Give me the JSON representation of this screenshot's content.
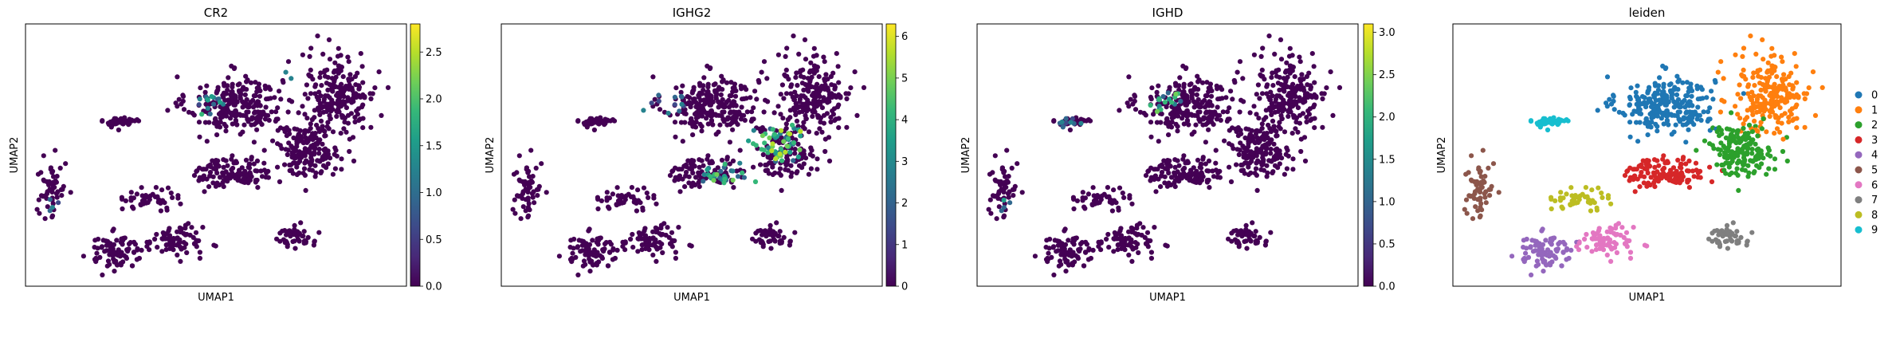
{
  "figure": {
    "colormap": [
      "#440154",
      "#482878",
      "#3e4989",
      "#31688e",
      "#26828e",
      "#1f9e89",
      "#35b779",
      "#6ece58",
      "#b5de2b",
      "#fde725"
    ],
    "categorical_palette": [
      "#1f77b4",
      "#ff7f0e",
      "#2ca02c",
      "#d62728",
      "#9467bd",
      "#8c564b",
      "#e377c2",
      "#7f7f7f",
      "#bcbd22",
      "#17becf"
    ]
  },
  "chart_data": [
    {
      "type": "scatter",
      "title": "CR2",
      "xlabel": "UMAP1",
      "ylabel": "UMAP2",
      "color_scale": "viridis",
      "colorbar": {
        "range": [
          0,
          2.8
        ],
        "ticks": [
          "0.0",
          "0.5",
          "1.0",
          "1.5",
          "2.0",
          "2.5"
        ]
      },
      "hotspots": [
        {
          "x": 0.47,
          "y": 0.7,
          "spread": 0.05,
          "count": 14,
          "max": 1.8
        },
        {
          "x": 0.06,
          "y": 0.3,
          "spread": 0.03,
          "count": 6,
          "max": 1.3
        },
        {
          "x": 0.7,
          "y": 0.82,
          "spread": 0.03,
          "count": 3,
          "max": 2.7
        }
      ]
    },
    {
      "type": "scatter",
      "title": "IGHG2",
      "xlabel": "UMAP1",
      "ylabel": "UMAP2",
      "color_scale": "viridis",
      "colorbar": {
        "range": [
          0,
          6.3
        ],
        "ticks": [
          "0",
          "1",
          "2",
          "3",
          "4",
          "5",
          "6"
        ]
      },
      "hotspots": [
        {
          "x": 0.72,
          "y": 0.55,
          "spread": 0.09,
          "count": 28,
          "max": 6.0
        },
        {
          "x": 0.6,
          "y": 0.4,
          "spread": 0.08,
          "count": 14,
          "max": 5.0
        },
        {
          "x": 0.4,
          "y": 0.7,
          "spread": 0.08,
          "count": 8,
          "max": 3.0
        }
      ]
    },
    {
      "type": "scatter",
      "title": "IGHD",
      "xlabel": "UMAP1",
      "ylabel": "UMAP2",
      "color_scale": "viridis",
      "colorbar": {
        "range": [
          0,
          3.1
        ],
        "ticks": [
          "0.0",
          "0.5",
          "1.0",
          "1.5",
          "2.0",
          "2.5",
          "3.0"
        ]
      },
      "hotspots": [
        {
          "x": 0.48,
          "y": 0.73,
          "spread": 0.06,
          "count": 30,
          "max": 2.5
        },
        {
          "x": 0.06,
          "y": 0.3,
          "spread": 0.03,
          "count": 9,
          "max": 2.0
        },
        {
          "x": 0.22,
          "y": 0.62,
          "spread": 0.05,
          "count": 5,
          "max": 1.5
        }
      ]
    },
    {
      "type": "scatter",
      "title": "leiden",
      "xlabel": "UMAP1",
      "ylabel": "UMAP2",
      "legend": {
        "placement": "right",
        "entries": [
          "0",
          "1",
          "2",
          "3",
          "4",
          "5",
          "6",
          "7",
          "8",
          "9"
        ]
      }
    }
  ]
}
